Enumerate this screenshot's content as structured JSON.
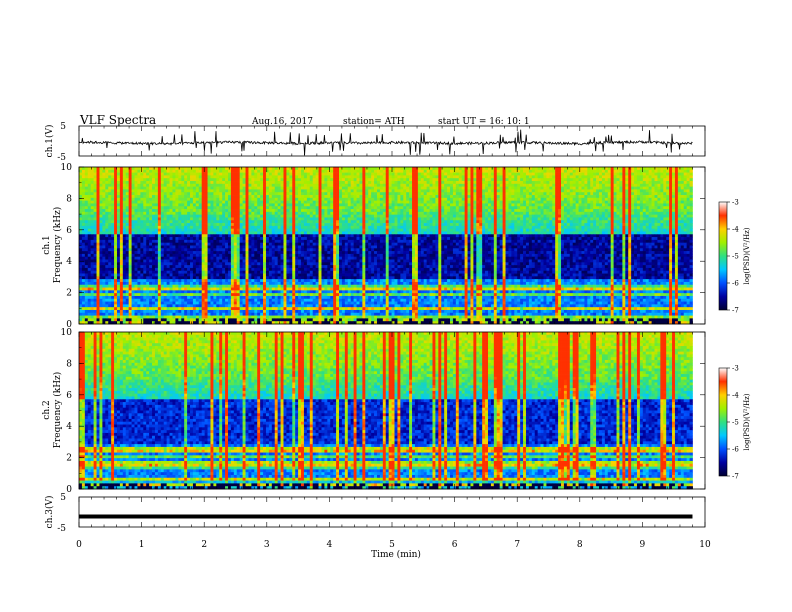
{
  "header": {
    "title": "VLF  Spectra",
    "date": "Aug.16, 2017",
    "station": "station= ATH",
    "start_ut": "start  UT  =    16: 10: 1"
  },
  "chart_data": [
    {
      "type": "line",
      "panel": "ch1_waveform",
      "ylabel": "ch.1(V)",
      "ylim": [
        -5,
        5
      ],
      "y_ticks": [
        "5",
        "-5"
      ],
      "description_series": [
        {
          "x": [
            0,
            0.5,
            1,
            1.5,
            2,
            2.5,
            3,
            3.5,
            4,
            4.5,
            5,
            5.5,
            6,
            6.5,
            7,
            7.5,
            8,
            8.5,
            9,
            9.5,
            9.8
          ],
          "values": [
            -0.3,
            -0.6,
            -0.8,
            -0.9,
            -0.5,
            -0.4,
            -0.6,
            -0.8,
            -0.6,
            -0.7,
            -0.5,
            -0.6,
            -0.8,
            -0.7,
            -0.4,
            -0.7,
            -0.9,
            -0.5,
            -0.3,
            -0.7,
            -0.8
          ]
        }
      ]
    },
    {
      "type": "heatmap",
      "panel": "ch1_spectrogram",
      "ylabel": "Frequency  (kHz)",
      "channel_label": "ch.1",
      "ylim": [
        0,
        10
      ],
      "y_ticks": [
        "0",
        "2",
        "4",
        "6",
        "8",
        "10"
      ],
      "xlim": [
        0,
        9.8
      ],
      "colorbar": {
        "label": "log(PSD)(V²/Hz)",
        "range": [
          -7,
          -3
        ],
        "ticks": [
          "-3",
          "-4",
          "-5",
          "-6",
          "-7"
        ]
      }
    },
    {
      "type": "heatmap",
      "panel": "ch2_spectrogram",
      "ylabel": "Frequency  (kHz)",
      "channel_label": "ch.2",
      "ylim": [
        0,
        10
      ],
      "y_ticks": [
        "0",
        "2",
        "4",
        "6",
        "8",
        "10"
      ],
      "xlim": [
        0,
        9.8
      ],
      "colorbar": {
        "label": "log(PSD)(V²/Hz)",
        "range": [
          -7,
          -3
        ],
        "ticks": [
          "-3",
          "-4",
          "-5",
          "-6",
          "-7"
        ]
      }
    },
    {
      "type": "line",
      "panel": "ch3_waveform",
      "ylabel": "ch.3(V)",
      "ylim": [
        -5,
        5
      ],
      "y_ticks": [
        "5",
        "-5"
      ],
      "series": [
        {
          "x": [
            0,
            9.8
          ],
          "values": [
            -1.5,
            -1.5
          ]
        }
      ]
    }
  ],
  "x_axis": {
    "label": "Time  (min)",
    "range": [
      0,
      10
    ],
    "ticks": [
      "0",
      "1",
      "2",
      "3",
      "4",
      "5",
      "6",
      "7",
      "8",
      "9",
      "10"
    ]
  },
  "colors": {
    "colormap": [
      "#000033",
      "#0000a0",
      "#0050ff",
      "#00c8ff",
      "#30e080",
      "#a0f000",
      "#ffd000",
      "#ff3000",
      "#ffffff"
    ],
    "trace": "#000000"
  }
}
